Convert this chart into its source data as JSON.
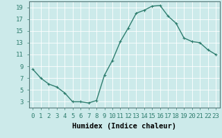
{
  "x": [
    0,
    1,
    2,
    3,
    4,
    5,
    6,
    7,
    8,
    9,
    10,
    11,
    12,
    13,
    14,
    15,
    16,
    17,
    18,
    19,
    20,
    21,
    22,
    23
  ],
  "y": [
    8.5,
    7.0,
    6.0,
    5.5,
    4.5,
    3.0,
    3.0,
    2.8,
    3.2,
    7.5,
    10.0,
    13.2,
    15.5,
    18.0,
    18.5,
    19.2,
    19.3,
    17.5,
    16.3,
    13.8,
    13.2,
    13.0,
    11.8,
    11.0
  ],
  "line_color": "#2e7d6e",
  "marker": "+",
  "marker_size": 3,
  "xlabel": "Humidex (Indice chaleur)",
  "ylim": [
    2,
    20
  ],
  "xlim": [
    -0.5,
    23.5
  ],
  "yticks": [
    3,
    5,
    7,
    9,
    11,
    13,
    15,
    17,
    19
  ],
  "xticks": [
    0,
    1,
    2,
    3,
    4,
    5,
    6,
    7,
    8,
    9,
    10,
    11,
    12,
    13,
    14,
    15,
    16,
    17,
    18,
    19,
    20,
    21,
    22,
    23
  ],
  "background_color": "#cceaea",
  "grid_color": "#ffffff",
  "tick_label_fontsize": 6.5,
  "xlabel_fontsize": 7.5,
  "line_width": 1.0
}
